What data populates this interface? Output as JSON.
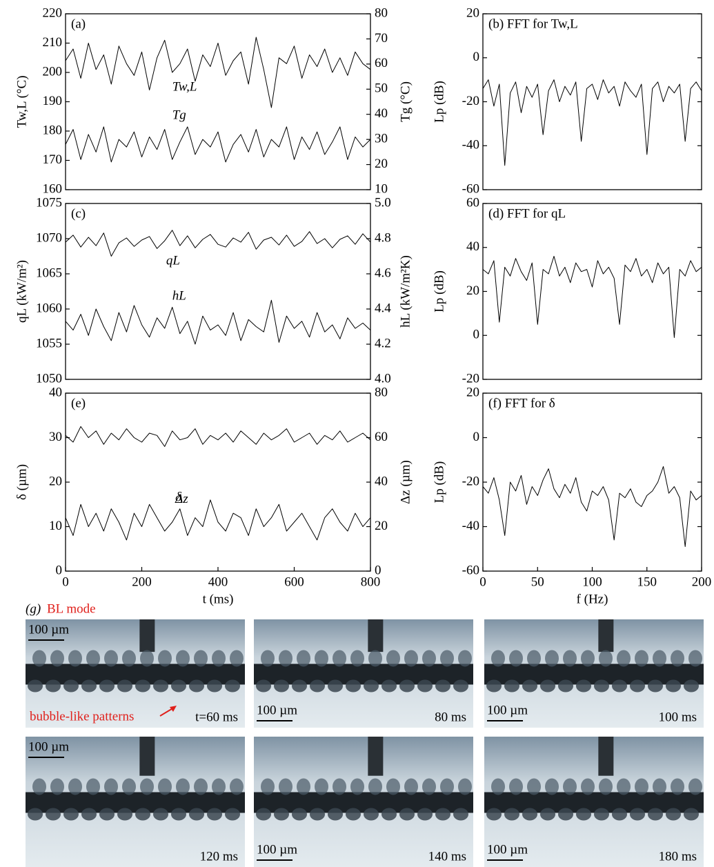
{
  "chart_data": [
    {
      "type": "line",
      "title": "(a)",
      "ylabel": "Tw,L (°C)",
      "y2label": "Tg (°C)",
      "xlim": [
        0,
        800
      ],
      "ylim": [
        160,
        220
      ],
      "yticks": [
        160,
        170,
        180,
        190,
        200,
        210,
        220
      ],
      "y2lim": [
        10,
        80
      ],
      "y2ticks": [
        10,
        20,
        30,
        40,
        50,
        60,
        70,
        80
      ],
      "x": [
        0,
        20,
        40,
        60,
        80,
        100,
        120,
        140,
        160,
        180,
        200,
        220,
        240,
        260,
        280,
        300,
        320,
        340,
        360,
        380,
        400,
        420,
        440,
        460,
        480,
        500,
        520,
        540,
        560,
        580,
        600,
        620,
        640,
        660,
        680,
        700,
        720,
        740,
        760,
        780,
        800
      ],
      "series": [
        {
          "name": "Tw,L",
          "color": "#000000",
          "values": [
            204,
            208,
            198,
            210,
            201,
            206,
            196,
            209,
            203,
            199,
            207,
            194,
            205,
            211,
            200,
            203,
            208,
            197,
            206,
            202,
            210,
            199,
            204,
            207,
            196,
            212,
            201,
            188,
            205,
            203,
            209,
            198,
            206,
            202,
            208,
            200,
            205,
            199,
            207,
            203,
            201
          ]
        },
        {
          "name": "Tg",
          "color": "#000000",
          "axis": "y2",
          "values": [
            28,
            34,
            22,
            32,
            25,
            35,
            21,
            30,
            27,
            33,
            23,
            31,
            26,
            34,
            22,
            29,
            35,
            24,
            30,
            27,
            33,
            21,
            28,
            32,
            25,
            34,
            23,
            30,
            27,
            35,
            22,
            31,
            26,
            33,
            24,
            29,
            35,
            22,
            31,
            27,
            30
          ]
        }
      ]
    },
    {
      "type": "line",
      "title": "(b) FFT for Tw,L",
      "ylabel": "Lp (dB)",
      "xlim": [
        0,
        200
      ],
      "ylim": [
        -60,
        20
      ],
      "yticks": [
        -60,
        -40,
        -20,
        0,
        20
      ],
      "x": [
        0,
        5,
        10,
        15,
        20,
        25,
        30,
        35,
        40,
        45,
        50,
        55,
        60,
        65,
        70,
        75,
        80,
        85,
        90,
        95,
        100,
        105,
        110,
        115,
        120,
        125,
        130,
        135,
        140,
        145,
        150,
        155,
        160,
        165,
        170,
        175,
        180,
        185,
        190,
        195,
        200
      ],
      "series": [
        {
          "name": null,
          "color": "#000000",
          "values": [
            -14,
            -10,
            -22,
            -12,
            -49,
            -16,
            -11,
            -25,
            -13,
            -18,
            -12,
            -35,
            -15,
            -10,
            -20,
            -13,
            -17,
            -11,
            -38,
            -14,
            -12,
            -19,
            -10,
            -16,
            -13,
            -22,
            -11,
            -15,
            -18,
            -12,
            -44,
            -14,
            -11,
            -20,
            -13,
            -16,
            -12,
            -38,
            -14,
            -11,
            -15
          ]
        }
      ]
    },
    {
      "type": "line",
      "title": "(c)",
      "ylabel": "qL (kW/m²)",
      "y2label": "hL (kW/m²K)",
      "xlim": [
        0,
        800
      ],
      "ylim": [
        1050,
        1075
      ],
      "yticks": [
        1050,
        1055,
        1060,
        1065,
        1070,
        1075
      ],
      "y2lim": [
        4,
        5
      ],
      "y2ticks": [
        {
          "value": 4,
          "label": "4.0"
        },
        4.2,
        4.4,
        4.6,
        4.8,
        {
          "value": 5,
          "label": "5.0"
        }
      ],
      "x": [
        0,
        20,
        40,
        60,
        80,
        100,
        120,
        140,
        160,
        180,
        200,
        220,
        240,
        260,
        280,
        300,
        320,
        340,
        360,
        380,
        400,
        420,
        440,
        460,
        480,
        500,
        520,
        540,
        560,
        580,
        600,
        620,
        640,
        660,
        680,
        700,
        720,
        740,
        760,
        780,
        800
      ],
      "series": [
        {
          "name": "qL",
          "color": "#000000",
          "values": [
            1069.5,
            1070.5,
            1068.8,
            1070.2,
            1069.0,
            1070.8,
            1067.5,
            1069.4,
            1070.1,
            1068.9,
            1069.8,
            1070.3,
            1068.6,
            1069.7,
            1071.2,
            1069.0,
            1070.4,
            1068.7,
            1069.9,
            1070.6,
            1069.2,
            1068.8,
            1070.1,
            1069.5,
            1070.9,
            1068.5,
            1069.8,
            1070.2,
            1069.1,
            1070.5,
            1068.9,
            1069.6,
            1071.0,
            1069.3,
            1070.0,
            1068.7,
            1069.9,
            1070.4,
            1069.2,
            1070.7,
            1069.5
          ]
        },
        {
          "name": "hL",
          "color": "#000000",
          "axis": "y2",
          "values": [
            4.33,
            4.28,
            4.37,
            4.25,
            4.4,
            4.3,
            4.22,
            4.38,
            4.27,
            4.42,
            4.31,
            4.24,
            4.35,
            4.29,
            4.41,
            4.26,
            4.33,
            4.2,
            4.36,
            4.28,
            4.31,
            4.25,
            4.38,
            4.22,
            4.34,
            4.3,
            4.27,
            4.45,
            4.21,
            4.36,
            4.29,
            4.33,
            4.24,
            4.38,
            4.27,
            4.31,
            4.23,
            4.35,
            4.29,
            4.32,
            4.28
          ]
        }
      ]
    },
    {
      "type": "line",
      "title": "(d) FFT for qL",
      "ylabel": "Lp (dB)",
      "xlim": [
        0,
        200
      ],
      "ylim": [
        -20,
        60
      ],
      "yticks": [
        -20,
        0,
        20,
        40,
        60
      ],
      "x": [
        0,
        5,
        10,
        15,
        20,
        25,
        30,
        35,
        40,
        45,
        50,
        55,
        60,
        65,
        70,
        75,
        80,
        85,
        90,
        95,
        100,
        105,
        110,
        115,
        120,
        125,
        130,
        135,
        140,
        145,
        150,
        155,
        160,
        165,
        170,
        175,
        180,
        185,
        190,
        195,
        200
      ],
      "series": [
        {
          "name": null,
          "color": "#000000",
          "values": [
            30,
            28,
            34,
            6,
            31,
            27,
            35,
            29,
            25,
            33,
            5,
            30,
            28,
            36,
            27,
            31,
            24,
            33,
            29,
            30,
            22,
            34,
            28,
            31,
            26,
            5,
            32,
            29,
            35,
            27,
            30,
            24,
            33,
            28,
            31,
            -1,
            30,
            27,
            34,
            29,
            31
          ]
        }
      ]
    },
    {
      "type": "line",
      "title": "(e)",
      "ylabel": "δ (µm)",
      "y2label": "Δz (µm)",
      "xlabel": "t (ms)",
      "xlim": [
        0,
        800
      ],
      "xticks": [
        0,
        200,
        400,
        600,
        800
      ],
      "ylim": [
        0,
        40
      ],
      "yticks": [
        0,
        10,
        20,
        30,
        40
      ],
      "y2lim": [
        0,
        80
      ],
      "y2ticks": [
        0,
        20,
        40,
        60,
        80
      ],
      "x": [
        0,
        20,
        40,
        60,
        80,
        100,
        120,
        140,
        160,
        180,
        200,
        220,
        240,
        260,
        280,
        300,
        320,
        340,
        360,
        380,
        400,
        420,
        440,
        460,
        480,
        500,
        520,
        540,
        560,
        580,
        600,
        620,
        640,
        660,
        680,
        700,
        720,
        740,
        760,
        780,
        800
      ],
      "series": [
        {
          "name": "δ",
          "color": "#000000",
          "values": [
            12,
            8,
            15,
            10,
            13,
            9,
            14,
            11,
            7,
            13,
            10,
            15,
            12,
            9,
            11,
            14,
            8,
            12,
            10,
            16,
            11,
            9,
            13,
            12,
            8,
            14,
            10,
            12,
            15,
            9,
            11,
            13,
            10,
            7,
            12,
            14,
            11,
            9,
            13,
            10,
            12
          ]
        },
        {
          "name": "Δz",
          "color": "#000000",
          "axis": "y2",
          "values": [
            61,
            58,
            65,
            60,
            63,
            57,
            62,
            59,
            64,
            60,
            58,
            62,
            61,
            56,
            63,
            59,
            60,
            64,
            57,
            61,
            59,
            62,
            58,
            63,
            60,
            57,
            62,
            59,
            61,
            64,
            58,
            60,
            62,
            57,
            61,
            59,
            63,
            58,
            60,
            62,
            59
          ]
        }
      ]
    },
    {
      "type": "line",
      "title": "(f) FFT for δ",
      "ylabel": "Lp (dB)",
      "xlabel": "f (Hz)",
      "xlim": [
        0,
        200
      ],
      "xticks": [
        0,
        50,
        100,
        150,
        200
      ],
      "ylim": [
        -60,
        20
      ],
      "yticks": [
        -60,
        -40,
        -20,
        0,
        20
      ],
      "x": [
        0,
        5,
        10,
        15,
        20,
        25,
        30,
        35,
        40,
        45,
        50,
        55,
        60,
        65,
        70,
        75,
        80,
        85,
        90,
        95,
        100,
        105,
        110,
        115,
        120,
        125,
        130,
        135,
        140,
        145,
        150,
        155,
        160,
        165,
        170,
        175,
        180,
        185,
        190,
        195,
        200
      ],
      "series": [
        {
          "name": null,
          "color": "#000000",
          "values": [
            -22,
            -25,
            -18,
            -28,
            -44,
            -20,
            -24,
            -17,
            -30,
            -22,
            -26,
            -19,
            -14,
            -23,
            -27,
            -21,
            -25,
            -18,
            -29,
            -33,
            -24,
            -26,
            -22,
            -28,
            -46,
            -25,
            -27,
            -23,
            -29,
            -31,
            -26,
            -24,
            -20,
            -13,
            -25,
            -22,
            -27,
            -49,
            -24,
            -28,
            -26
          ]
        }
      ]
    }
  ],
  "images": {
    "label": "(g)",
    "mode": "BL mode",
    "annotation": "bubble-like patterns",
    "tiles": [
      {
        "time": "t=60 ms",
        "scale": "100 µm"
      },
      {
        "time": "80 ms",
        "scale": "100 µm"
      },
      {
        "time": "100 ms",
        "scale": "100 µm"
      },
      {
        "time": "120 ms",
        "scale": "100 µm"
      },
      {
        "time": "140 ms",
        "scale": "100 µm"
      },
      {
        "time": "180 ms",
        "scale": "100 µm"
      }
    ]
  }
}
